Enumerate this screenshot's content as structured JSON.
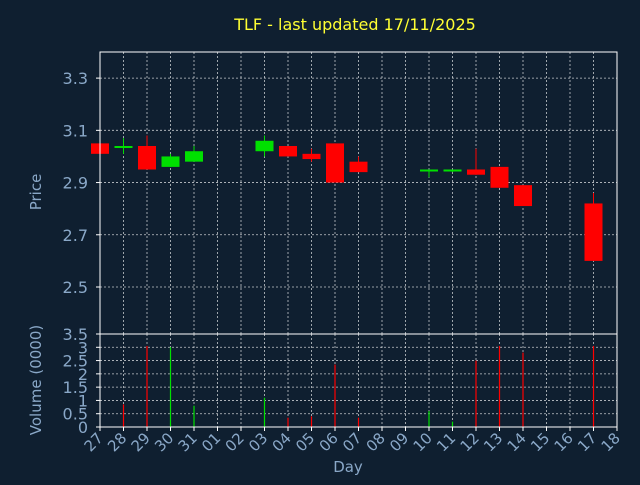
{
  "title": "TLF - last updated 17/11/2025",
  "colors": {
    "background": "#0f1f30",
    "title": "#ffff33",
    "axis_text": "#8aa8c8",
    "frame": "#ffffff",
    "grid": "#ffffff",
    "up": "#00e000",
    "down": "#ff0000"
  },
  "chart_data": [
    {
      "type": "candlestick",
      "ylabel": "Price",
      "ylim": [
        2.32,
        3.4
      ],
      "yticks": [
        2.5,
        2.7,
        2.9,
        3.1,
        3.3
      ],
      "ytick_labels": [
        "2.5",
        "2.7",
        "2.9",
        "3.1",
        "3.3"
      ],
      "grid": true,
      "categories": [
        "27",
        "28",
        "29",
        "30",
        "31",
        "01",
        "02",
        "03",
        "04",
        "05",
        "06",
        "07",
        "08",
        "09",
        "10",
        "11",
        "12",
        "13",
        "14",
        "15",
        "16",
        "17",
        "18"
      ],
      "candles": [
        {
          "x": "27",
          "open": 3.05,
          "high": 3.05,
          "low": 3.01,
          "close": 3.01
        },
        {
          "x": "28",
          "open": 3.04,
          "high": 3.07,
          "low": 3.01,
          "close": 3.04
        },
        {
          "x": "29",
          "open": 3.04,
          "high": 3.08,
          "low": 2.95,
          "close": 2.95
        },
        {
          "x": "30",
          "open": 2.96,
          "high": 3.01,
          "low": 2.96,
          "close": 3.0
        },
        {
          "x": "31",
          "open": 2.98,
          "high": 3.04,
          "low": 2.98,
          "close": 3.02
        },
        {
          "x": "03",
          "open": 3.02,
          "high": 3.08,
          "low": 3.0,
          "close": 3.06
        },
        {
          "x": "04",
          "open": 3.04,
          "high": 3.04,
          "low": 3.0,
          "close": 3.0
        },
        {
          "x": "05",
          "open": 3.01,
          "high": 3.03,
          "low": 2.98,
          "close": 2.99
        },
        {
          "x": "06",
          "open": 3.05,
          "high": 3.05,
          "low": 2.9,
          "close": 2.9
        },
        {
          "x": "07",
          "open": 2.98,
          "high": 3.0,
          "low": 2.94,
          "close": 2.94
        },
        {
          "x": "10",
          "open": 2.95,
          "high": 2.95,
          "low": 2.92,
          "close": 2.95
        },
        {
          "x": "11",
          "open": 2.95,
          "high": 2.95,
          "low": 2.94,
          "close": 2.95
        },
        {
          "x": "12",
          "open": 2.95,
          "high": 3.03,
          "low": 2.93,
          "close": 2.93
        },
        {
          "x": "13",
          "open": 2.96,
          "high": 2.96,
          "low": 2.88,
          "close": 2.88
        },
        {
          "x": "14",
          "open": 2.89,
          "high": 2.89,
          "low": 2.81,
          "close": 2.81
        },
        {
          "x": "17",
          "open": 2.82,
          "high": 2.86,
          "low": 2.6,
          "close": 2.6
        }
      ]
    },
    {
      "type": "bar",
      "xlabel": "Day",
      "ylabel": "Volume (0000)",
      "ylim": [
        0,
        3.5
      ],
      "yticks": [
        0,
        0.5,
        1,
        1.5,
        2,
        2.5,
        3,
        3.5
      ],
      "ytick_labels": [
        "0",
        "0.5",
        "1",
        "1.5",
        "2",
        "2.5",
        "3",
        "3.5"
      ],
      "grid": true,
      "categories": [
        "27",
        "28",
        "29",
        "30",
        "31",
        "01",
        "02",
        "03",
        "04",
        "05",
        "06",
        "07",
        "08",
        "09",
        "10",
        "11",
        "12",
        "13",
        "14",
        "15",
        "16",
        "17",
        "18"
      ],
      "bars": [
        {
          "x": "28",
          "value": 0.85,
          "direction": "down"
        },
        {
          "x": "29",
          "value": 3.05,
          "direction": "down"
        },
        {
          "x": "30",
          "value": 3.0,
          "direction": "up"
        },
        {
          "x": "31",
          "value": 0.8,
          "direction": "up"
        },
        {
          "x": "03",
          "value": 1.1,
          "direction": "up"
        },
        {
          "x": "04",
          "value": 0.35,
          "direction": "down"
        },
        {
          "x": "05",
          "value": 0.4,
          "direction": "down"
        },
        {
          "x": "06",
          "value": 2.35,
          "direction": "down"
        },
        {
          "x": "07",
          "value": 0.35,
          "direction": "down"
        },
        {
          "x": "10",
          "value": 0.6,
          "direction": "up"
        },
        {
          "x": "11",
          "value": 0.2,
          "direction": "up"
        },
        {
          "x": "12",
          "value": 2.5,
          "direction": "down"
        },
        {
          "x": "13",
          "value": 3.05,
          "direction": "down"
        },
        {
          "x": "14",
          "value": 2.8,
          "direction": "down"
        },
        {
          "x": "17",
          "value": 3.05,
          "direction": "down"
        }
      ]
    }
  ]
}
